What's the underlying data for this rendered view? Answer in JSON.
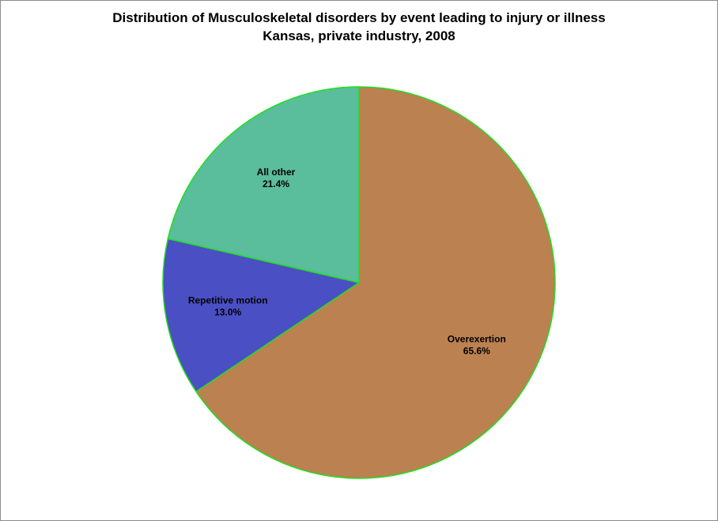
{
  "chart_data": {
    "type": "pie",
    "title": "Distribution of Musculoskeletal disorders by event leading to injury or illness",
    "subtitle": "Kansas, private industry, 2008",
    "categories": [
      "Overexertion",
      "Repetitive motion",
      "All other"
    ],
    "values": [
      65.6,
      13.0,
      21.4
    ],
    "value_labels": [
      "65.6%",
      "13.0%",
      "21.4%"
    ],
    "unit": "%",
    "colors": [
      "#bb8150",
      "#4b4fc4",
      "#5abd9b"
    ],
    "slice_border_color": "#22dd22",
    "start_angle": "12 o'clock",
    "direction": "clockwise",
    "legend": "none"
  }
}
